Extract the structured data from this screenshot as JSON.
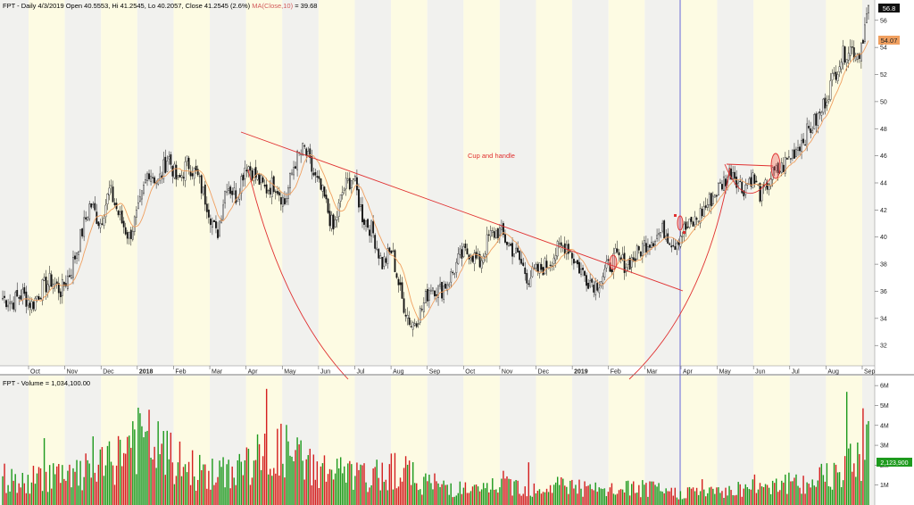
{
  "price_header": {
    "symbol": "FPT - Daily 4/3/2019 Open 40.5553, Hi 41.2545, Lo 40.2057, Close 41.2545 (2.6%)",
    "ma": "MA(Close,10)",
    "ma_value": "= 39.68"
  },
  "volume_header": {
    "text": "FPT - Volume = 1,034,100.00"
  },
  "annotation": "Cup and handle",
  "last_price_tag": "56.8",
  "ma_price_tag": "54.07",
  "last_volume_tag": "2,123,900",
  "colors": {
    "up": "#1e9a1e",
    "down": "#d42020",
    "ma": "#f0a060",
    "annotation": "#e03030",
    "vline": "#8c8cd8",
    "band_light": "#fdfbe3",
    "band_gray": "#f1f1ee"
  },
  "chart_data": [
    {
      "type": "candlestick",
      "y_ticks": [
        "32",
        "34",
        "36",
        "38",
        "40",
        "42",
        "44",
        "46",
        "48",
        "50",
        "52",
        "54",
        "56"
      ],
      "ylim": [
        30.5,
        57.5
      ],
      "x_ticks": [
        {
          "label": "Oct",
          "bold": false
        },
        {
          "label": "Nov",
          "bold": false
        },
        {
          "label": "Dec",
          "bold": false
        },
        {
          "label": "2018",
          "bold": true
        },
        {
          "label": "Feb",
          "bold": false
        },
        {
          "label": "Mar",
          "bold": false
        },
        {
          "label": "Apr",
          "bold": false
        },
        {
          "label": "May",
          "bold": false
        },
        {
          "label": "Jun",
          "bold": false
        },
        {
          "label": "Jul",
          "bold": false
        },
        {
          "label": "Aug",
          "bold": false
        },
        {
          "label": "Sep",
          "bold": false
        },
        {
          "label": "Oct",
          "bold": false
        },
        {
          "label": "Nov",
          "bold": false
        },
        {
          "label": "Dec",
          "bold": false
        },
        {
          "label": "2019",
          "bold": true
        },
        {
          "label": "Feb",
          "bold": false
        },
        {
          "label": "Mar",
          "bold": false
        },
        {
          "label": "Apr",
          "bold": false
        },
        {
          "label": "May",
          "bold": false
        },
        {
          "label": "Jun",
          "bold": false
        },
        {
          "label": "Jul",
          "bold": false
        },
        {
          "label": "Aug",
          "bold": false
        },
        {
          "label": "Sep",
          "bold": false
        }
      ],
      "close_path": [
        35.5,
        35.2,
        35.8,
        35.0,
        36.2,
        36.8,
        36.0,
        37.5,
        40.0,
        42.5,
        41.0,
        43.5,
        41.5,
        40.0,
        42.0,
        45.0,
        44.0,
        46.0,
        44.0,
        45.5,
        44.5,
        42.5,
        40.0,
        44.0,
        43.0,
        45.5,
        44.5,
        43.5,
        44.0,
        42.5,
        45.5,
        46.5,
        44.5,
        43.0,
        40.5,
        43.5,
        44.5,
        41.5,
        40.5,
        38.0,
        39.0,
        35.5,
        33.5,
        34.5,
        36.5,
        36.0,
        37.0,
        38.5,
        39.0,
        38.0,
        40.0,
        40.5,
        39.5,
        38.5,
        37.0,
        37.5,
        38.0,
        39.0,
        39.5,
        38.0,
        37.0,
        36.5,
        37.5,
        38.5,
        38.0,
        38.5,
        39.5,
        40.0,
        40.5,
        39.5,
        40.5,
        41.0,
        42.0,
        43.0,
        44.0,
        45.0,
        43.5,
        44.5,
        43.0,
        44.5,
        45.0,
        46.0,
        47.0,
        48.0,
        49.0,
        51.0,
        53.0,
        54.0,
        53.5,
        56.8
      ],
      "ma_period": 10,
      "ma_label": "MA(Close,10)"
    },
    {
      "type": "bar",
      "series_name": "Volume",
      "y_ticks": [
        "1M",
        "2M",
        "3M",
        "4M",
        "5M",
        "6M"
      ],
      "ylim": [
        0,
        6.5
      ],
      "volume_profile": [
        1.6,
        1.2,
        1.9,
        1.5,
        2.0,
        2.4,
        4.0,
        3.5,
        2.5,
        2.0,
        1.7,
        2.3,
        2.8,
        3.2,
        2.4,
        2.0,
        1.8,
        1.5,
        2.2,
        1.6,
        1.2,
        1.0,
        0.8,
        1.3,
        1.1,
        1.0,
        1.3,
        0.9,
        0.8,
        1.0,
        0.9,
        0.7,
        0.8,
        0.7,
        1.0,
        1.2,
        1.4,
        1.1,
        1.8,
        2.6,
        3.6
      ]
    }
  ]
}
